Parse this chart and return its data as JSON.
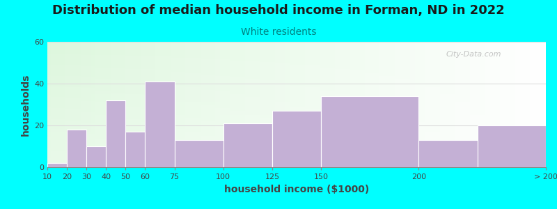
{
  "title": "Distribution of median household income in Forman, ND in 2022",
  "subtitle": "White residents",
  "xlabel": "household income ($1000)",
  "ylabel": "households",
  "background_color": "#00FFFF",
  "bar_color": "#C4B0D5",
  "categories": [
    "10",
    "20",
    "30",
    "40",
    "50",
    "60",
    "75",
    "100",
    "125",
    "150",
    "200",
    "> 200"
  ],
  "values": [
    2,
    18,
    10,
    32,
    17,
    41,
    13,
    21,
    27,
    34,
    13,
    20
  ],
  "x_left_edges": [
    10,
    20,
    30,
    40,
    50,
    60,
    75,
    100,
    125,
    150,
    200,
    230
  ],
  "x_right_edges": [
    20,
    30,
    40,
    50,
    60,
    75,
    100,
    125,
    150,
    200,
    230,
    265
  ],
  "xtick_positions": [
    10,
    20,
    30,
    40,
    50,
    60,
    75,
    100,
    125,
    150,
    200,
    265
  ],
  "xtick_labels": [
    "10",
    "20",
    "30",
    "40",
    "50",
    "60",
    "75",
    "100",
    "125",
    "150",
    "200",
    "> 200"
  ],
  "xlim": [
    10,
    265
  ],
  "ylim": [
    0,
    60
  ],
  "yticks": [
    0,
    20,
    40,
    60
  ],
  "title_fontsize": 13,
  "subtitle_fontsize": 10,
  "title_color": "#1a1a1a",
  "subtitle_color": "#008080",
  "axis_label_fontsize": 10,
  "tick_fontsize": 8,
  "watermark": "City-Data.com"
}
